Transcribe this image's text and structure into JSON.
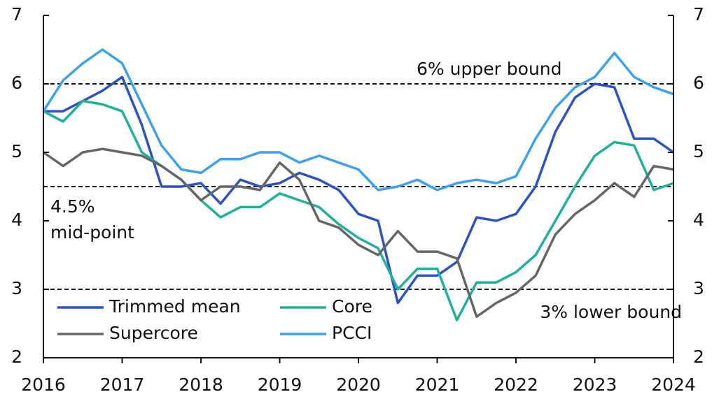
{
  "chart_data": {
    "type": "line",
    "x": [
      2016,
      2016.25,
      2016.5,
      2016.75,
      2017,
      2017.25,
      2017.5,
      2017.75,
      2018,
      2018.25,
      2018.5,
      2018.75,
      2019,
      2019.25,
      2019.5,
      2019.75,
      2020,
      2020.25,
      2020.5,
      2020.75,
      2021,
      2021.25,
      2021.5,
      2021.75,
      2022,
      2022.25,
      2022.5,
      2022.75,
      2023,
      2023.25,
      2023.5,
      2023.75,
      2024
    ],
    "series": [
      {
        "name": "Trimmed mean",
        "color": "#2a52c9",
        "values": [
          5.6,
          5.6,
          5.75,
          5.9,
          6.1,
          5.4,
          4.5,
          4.5,
          4.55,
          4.25,
          4.6,
          4.5,
          4.55,
          4.7,
          4.6,
          4.45,
          4.1,
          4.0,
          2.8,
          3.2,
          3.2,
          3.4,
          4.05,
          4.0,
          4.1,
          4.5,
          5.3,
          5.8,
          6.0,
          5.95,
          5.2,
          5.2,
          5.0
        ]
      },
      {
        "name": "Core",
        "color": "#1db39b",
        "values": [
          5.6,
          5.45,
          5.75,
          5.7,
          5.6,
          5.0,
          4.8,
          4.6,
          4.3,
          4.05,
          4.2,
          4.2,
          4.4,
          4.3,
          4.2,
          3.95,
          3.75,
          3.6,
          3.0,
          3.3,
          3.3,
          2.55,
          3.1,
          3.1,
          3.25,
          3.5,
          4.0,
          4.5,
          4.95,
          5.15,
          5.1,
          4.45,
          4.55
        ]
      },
      {
        "name": "Supercore",
        "color": "#666666",
        "values": [
          5.0,
          4.8,
          5.0,
          5.05,
          5.0,
          4.95,
          4.8,
          4.6,
          4.3,
          4.5,
          4.5,
          4.45,
          4.85,
          4.6,
          4.0,
          3.9,
          3.65,
          3.5,
          3.85,
          3.55,
          3.55,
          3.45,
          2.6,
          2.8,
          2.95,
          3.2,
          3.8,
          4.1,
          4.3,
          4.55,
          4.35,
          4.8,
          4.75
        ]
      },
      {
        "name": "PCCI",
        "color": "#3ba2f2",
        "values": [
          5.6,
          6.05,
          6.3,
          6.5,
          6.3,
          5.7,
          5.1,
          4.75,
          4.7,
          4.9,
          4.9,
          5.0,
          5.0,
          4.85,
          4.95,
          4.85,
          4.75,
          4.45,
          4.5,
          4.6,
          4.45,
          4.55,
          4.6,
          4.55,
          4.65,
          5.2,
          5.65,
          5.95,
          6.1,
          6.45,
          6.1,
          5.95,
          5.85
        ]
      }
    ],
    "xlim": [
      2016,
      2024
    ],
    "xticks": [
      2016,
      2017,
      2018,
      2019,
      2020,
      2021,
      2022,
      2023,
      2024
    ],
    "ylim": [
      2,
      7
    ],
    "yticks": [
      2,
      3,
      4,
      5,
      6,
      7
    ],
    "y2lim": [
      2,
      7
    ],
    "y2ticks": [
      2,
      3,
      4,
      5,
      6,
      7
    ],
    "legend": "lower left",
    "reference_lines": [
      {
        "value": 6,
        "label": [
          "6% upper bound"
        ]
      },
      {
        "value": 4.5,
        "label": [
          "4.5%",
          "mid-point"
        ]
      },
      {
        "value": 3,
        "label": [
          "3% lower bound"
        ]
      }
    ]
  }
}
